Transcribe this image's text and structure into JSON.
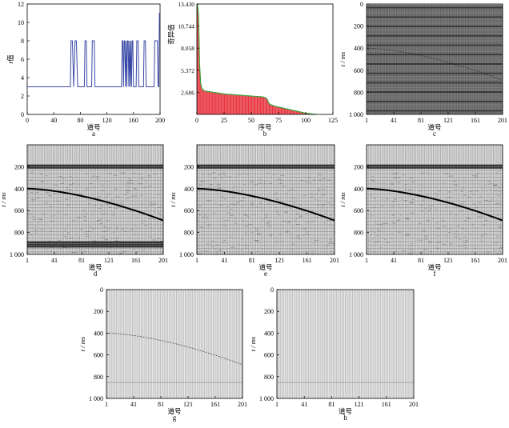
{
  "chart_data": [
    {
      "type": "line",
      "panel": "a",
      "xlabel": "道号",
      "ylabel": "r值",
      "xlim": [
        0,
        200
      ],
      "ylim": [
        0,
        12
      ],
      "xticks": [
        "0",
        "40",
        "80",
        "120",
        "160",
        "200"
      ],
      "yticks": [
        "0",
        "2",
        "4",
        "6",
        "8",
        "10",
        "12"
      ],
      "color": "#3b4aa8",
      "x": [
        0,
        65,
        66,
        68,
        70,
        72,
        74,
        76,
        86,
        87,
        89,
        90,
        97,
        98,
        101,
        102,
        142,
        143,
        144,
        145,
        146,
        147,
        148,
        149,
        150,
        151,
        152,
        153,
        154,
        155,
        156,
        157,
        158,
        159,
        160,
        164,
        165,
        167,
        168,
        175,
        176,
        178,
        179,
        191,
        192,
        196,
        197,
        198,
        199,
        200
      ],
      "y": [
        3,
        3,
        8,
        8,
        3,
        8,
        8,
        3,
        3,
        8,
        8,
        3,
        3,
        8,
        8,
        3,
        3,
        8,
        8,
        3,
        8,
        8,
        3,
        8,
        3,
        8,
        8,
        3,
        8,
        3,
        8,
        3,
        8,
        8,
        3,
        3,
        8,
        8,
        3,
        3,
        8,
        8,
        3,
        3,
        8,
        8,
        3,
        3,
        11,
        11
      ]
    },
    {
      "type": "bar",
      "panel": "b",
      "xlabel": "序号",
      "ylabel": "奇异值",
      "xlim": [
        0,
        125
      ],
      "ylim": [
        0,
        13.43
      ],
      "xticks": [
        "0",
        "25",
        "50",
        "75",
        "100",
        "125"
      ],
      "yticks": [
        "2.686",
        "5.372",
        "8.058",
        "10.744",
        "13.430"
      ],
      "bar_color": "#e8343f",
      "curve_color": "#3aa33a",
      "values": [
        13.43,
        12.1,
        6.0,
        3.8,
        3.2,
        3.0,
        2.9,
        2.85,
        2.82,
        2.8,
        2.78,
        2.76,
        2.74,
        2.72,
        2.7,
        2.68,
        2.66,
        2.64,
        2.62,
        2.6,
        2.58,
        2.56,
        2.54,
        2.52,
        2.5,
        2.48,
        2.47,
        2.46,
        2.45,
        2.44,
        2.43,
        2.42,
        2.41,
        2.4,
        2.39,
        2.38,
        2.37,
        2.36,
        2.35,
        2.34,
        2.33,
        2.32,
        2.31,
        2.3,
        2.29,
        2.28,
        2.27,
        2.26,
        2.25,
        2.24,
        2.23,
        2.22,
        2.21,
        2.2,
        2.19,
        2.18,
        2.17,
        2.16,
        2.15,
        2.14,
        2.12,
        2.1,
        2.05,
        1.98,
        1.85,
        1.55,
        1.3,
        1.2,
        1.15,
        1.1,
        1.05,
        1.0,
        0.97,
        0.94,
        0.91,
        0.88,
        0.85,
        0.82,
        0.79,
        0.76,
        0.73,
        0.7,
        0.67,
        0.64,
        0.61,
        0.58,
        0.55,
        0.52,
        0.49,
        0.46,
        0.43,
        0.4,
        0.37,
        0.34,
        0.31,
        0.28,
        0.25,
        0.22,
        0.19,
        0.17,
        0.15,
        0.13,
        0.11,
        0.09,
        0.07,
        0.05,
        0.04,
        0.03,
        0.02,
        0.01
      ]
    },
    {
      "type": "heatmap",
      "panel": "c",
      "ylabel": "t / ms",
      "xlabel": "道号",
      "xticks": [
        "1",
        "41",
        "81",
        "121",
        "161",
        "201"
      ],
      "yticks": [
        "0",
        "200",
        "400",
        "600",
        "800",
        "1 000"
      ],
      "ylim": [
        0,
        1000
      ],
      "content": "banded",
      "dark_bands_ms": [
        20,
        60,
        110,
        145,
        180,
        215,
        250,
        290,
        320,
        350,
        400,
        440,
        480,
        520,
        560,
        600,
        640,
        680,
        720,
        750,
        790,
        830,
        870,
        910,
        950
      ],
      "event": {
        "t0_ms": 400,
        "t_end_ms": 690,
        "strength": 0.25
      }
    },
    {
      "type": "heatmap",
      "panel": "d",
      "ylabel": "t / ms",
      "xlabel": "道号",
      "xticks": [
        "1",
        "41",
        "81",
        "121",
        "161",
        "201"
      ],
      "yticks": [
        "200",
        "400",
        "600",
        "800",
        "1 000"
      ],
      "ylim": [
        0,
        1000
      ],
      "content": "noisy",
      "dark_bands_ms": [
        180,
        200,
        880,
        900,
        920
      ],
      "event": {
        "t0_ms": 400,
        "t_end_ms": 690,
        "strength": 1
      }
    },
    {
      "type": "heatmap",
      "panel": "e",
      "ylabel": "t / ms",
      "xlabel": "道号",
      "xticks": [
        "1",
        "41",
        "81",
        "121",
        "161",
        "201"
      ],
      "yticks": [
        "200",
        "400",
        "600",
        "800",
        "1 000"
      ],
      "ylim": [
        0,
        1000
      ],
      "content": "noisy",
      "dark_bands_ms": [
        180,
        200
      ],
      "event": {
        "t0_ms": 400,
        "t_end_ms": 690,
        "strength": 1
      }
    },
    {
      "type": "heatmap",
      "panel": "f",
      "ylabel": "t / ms",
      "xlabel": "道号",
      "xticks": [
        "1",
        "41",
        "81",
        "121",
        "161",
        "201"
      ],
      "yticks": [
        "200",
        "400",
        "600",
        "800",
        "1 000"
      ],
      "ylim": [
        0,
        1000
      ],
      "content": "noisy",
      "dark_bands_ms": [
        180,
        200
      ],
      "event": {
        "t0_ms": 400,
        "t_end_ms": 690,
        "strength": 1
      }
    },
    {
      "type": "heatmap",
      "panel": "g",
      "ylabel": "t / ms",
      "xlabel": "道号",
      "xticks": [
        "1",
        "41",
        "81",
        "121",
        "161",
        "201"
      ],
      "yticks": [
        "0",
        "200",
        "400",
        "600",
        "800",
        "1 000"
      ],
      "ylim": [
        0,
        1000
      ],
      "content": "residual",
      "dark_bands_ms": [],
      "event": {
        "t0_ms": 400,
        "t_end_ms": 690,
        "strength": 0.3
      }
    },
    {
      "type": "heatmap",
      "panel": "h",
      "ylabel": "t / ms",
      "xlabel": "道号",
      "xticks": [
        "1",
        "41",
        "81",
        "121",
        "161",
        "201"
      ],
      "yticks": [
        "0",
        "200",
        "400",
        "600",
        "800",
        "1 000"
      ],
      "ylim": [
        0,
        1000
      ],
      "content": "residual",
      "dark_bands_ms": [],
      "event": null
    }
  ]
}
